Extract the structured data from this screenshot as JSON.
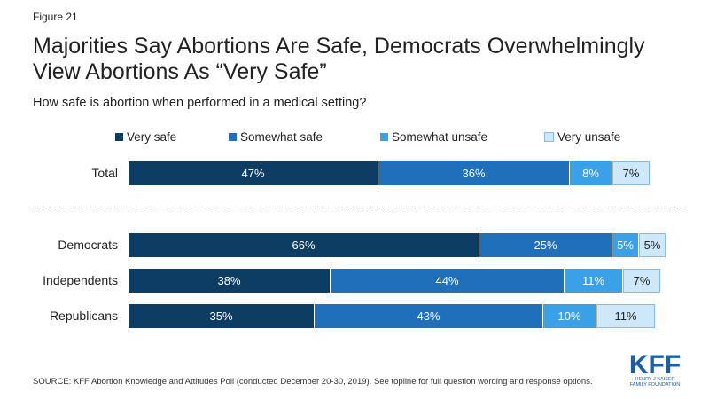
{
  "figure_label": "Figure 21",
  "title": "Majorities Say Abortions Are Safe, Democrats Overwhelmingly View Abortions As “Very Safe”",
  "subtitle": "How safe is abortion when performed in a medical setting?",
  "source": "SOURCE: KFF Abortion Knowledge and Attitudes Poll (conducted December 20-30, 2019). See topline for full question wording and response options.",
  "logo": {
    "text": "KFF",
    "subtext_line1": "HENRY J KAISER",
    "subtext_line2": "FAMILY FOUNDATION",
    "color": "#1a5fa8"
  },
  "chart_data": {
    "type": "bar",
    "orientation": "horizontal",
    "stacked": true,
    "categories": [
      "Total",
      "Democrats",
      "Independents",
      "Republicans"
    ],
    "series": [
      {
        "name": "Very safe",
        "color": "#0d3d63",
        "text_color": "#ffffff",
        "values": [
          47,
          66,
          38,
          35
        ]
      },
      {
        "name": "Somewhat safe",
        "color": "#1f6fba",
        "text_color": "#ffffff",
        "values": [
          36,
          25,
          44,
          43
        ]
      },
      {
        "name": "Somewhat unsafe",
        "color": "#3aa0e8",
        "text_color": "#ffffff",
        "values": [
          8,
          5,
          11,
          10
        ]
      },
      {
        "name": "Very unsafe",
        "color": "#cde8fb",
        "text_color": "#222222",
        "values": [
          7,
          5,
          7,
          11
        ]
      }
    ],
    "value_labels": [
      [
        "47%",
        "36%",
        "8%",
        "7%"
      ],
      [
        "66%",
        "25%",
        "5%",
        "5%"
      ],
      [
        "38%",
        "44%",
        "11%",
        "7%"
      ],
      [
        "35%",
        "43%",
        "10%",
        "11%"
      ]
    ],
    "unit": "%",
    "legend_position": "top",
    "grid": false
  }
}
